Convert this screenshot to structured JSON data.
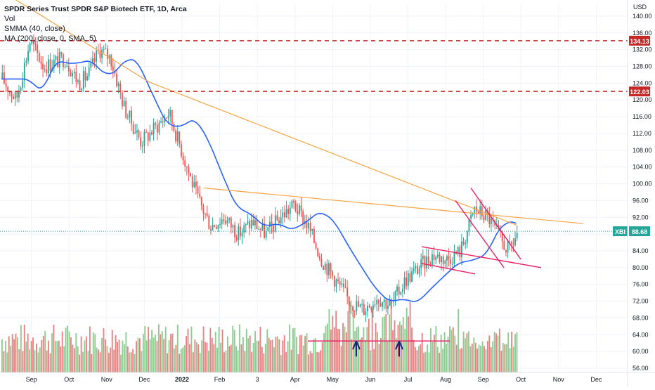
{
  "chart_data": {
    "type": "candlestick",
    "title": "SPDR Series Trust SPDR S&P Biotech ETF, 1D, Arca",
    "indicators": [
      "Vol",
      "SMMA (40, close)",
      "MA (200, close, 0, SMA, 5)"
    ],
    "currency_label": "USD",
    "symbol": "XBI",
    "last_price": "88.68",
    "ylim": [
      55,
      143
    ],
    "y_ticks": [
      56,
      60,
      64,
      68,
      72,
      76,
      80,
      84,
      88,
      92,
      96,
      100,
      104,
      108,
      112,
      116,
      120,
      124,
      128,
      132,
      136,
      140
    ],
    "y_tick_labels": [
      "56.00",
      "60.00",
      "64.00",
      "68.00",
      "72.00",
      "76.00",
      "80.00",
      "84.00",
      "88.00",
      "92.00",
      "96.00",
      "100.00",
      "104.00",
      "108.00",
      "112.00",
      "116.00",
      "120.00",
      "124.00",
      "128.00",
      "132.00",
      "136.00",
      "140.00"
    ],
    "x_tick_labels": [
      "Sep",
      "Oct",
      "Nov",
      "Dec",
      "2022",
      "Feb",
      "3",
      "Apr",
      "May",
      "Jun",
      "Jul",
      "Aug",
      "Sep",
      "Oct",
      "Nov",
      "Dec"
    ],
    "x_tick_bold": [
      false,
      false,
      false,
      false,
      true,
      false,
      false,
      false,
      false,
      false,
      false,
      false,
      false,
      false,
      false,
      false
    ],
    "x_tick_positions": [
      0.05,
      0.11,
      0.17,
      0.23,
      0.29,
      0.35,
      0.41,
      0.47,
      0.53,
      0.59,
      0.65,
      0.71,
      0.77,
      0.83,
      0.89,
      0.95
    ],
    "horizontal_levels": [
      {
        "value": 134.13,
        "label": "134.13",
        "color": "#c62828"
      },
      {
        "value": 122.03,
        "label": "122.03",
        "color": "#c62828"
      }
    ],
    "annotations": [
      "up-arrow",
      "up-arrow"
    ],
    "colors": {
      "up": "#26a69a",
      "down": "#ef5350",
      "smma": "#2962ff",
      "ma200": "#f7a440",
      "trendline": "#e91e63",
      "level": "#c62828",
      "symbol_badge": "#26a69a",
      "vol_up": "#81c784",
      "vol_down": "#e57373"
    }
  }
}
